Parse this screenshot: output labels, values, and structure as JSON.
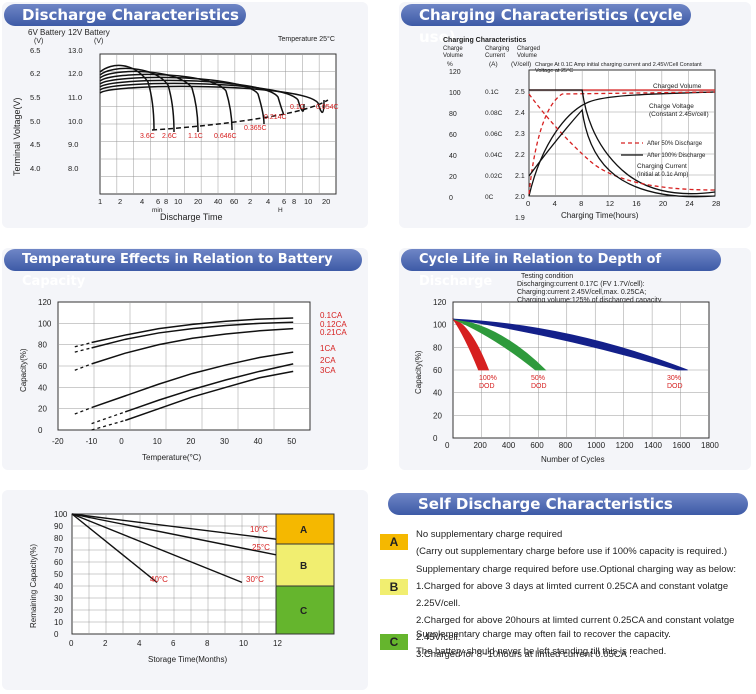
{
  "colors": {
    "header_from": "#6f86c6",
    "header_to": "#3d5aa6",
    "red": "#d62020",
    "green": "#2e9a3c",
    "navy": "#14208a",
    "zone_a": "#f5b800",
    "zone_b": "#f1ee70",
    "zone_c": "#65b52d"
  },
  "chart_data": [
    {
      "id": "discharge",
      "type": "line",
      "title": "Discharge Characteristics",
      "left_labels": {
        "v6": "6V Battery",
        "v6_unit": "(V)",
        "v12": "12V Battery",
        "v12_unit": "(V)"
      },
      "temperature": "Temperature 25°C",
      "ylabel": "Terminal Voltage(V)",
      "xlabel": "Discharge Time",
      "y6_ticks": [
        "6.5",
        "6.2",
        "5.5",
        "5.0",
        "4.5",
        "4.0"
      ],
      "y12_ticks": [
        "13.0",
        "12.0",
        "11.0",
        "10.0",
        "9.0",
        "8.0"
      ],
      "x_ticks": [
        "1",
        "2",
        "4",
        "6",
        "8",
        "10",
        "20",
        "40",
        "60",
        "2",
        "4",
        "6",
        "8",
        "10",
        "20"
      ],
      "x_units": {
        "min": "min",
        "h": "H"
      },
      "series_labels": [
        "3.6C",
        "2.6C",
        "1.1C",
        "0.646C",
        "0.365C",
        "0.214C",
        "0.1C",
        "0.054C"
      ]
    },
    {
      "id": "charging",
      "type": "line",
      "title": "Charging Characteristics (cycle use)",
      "inner_title": "Charging Characteristics",
      "col_heads": [
        [
          "Charge",
          "Volume"
        ],
        [
          "Charging",
          "Current"
        ],
        [
          "Charged",
          "Volume"
        ]
      ],
      "col_units": [
        "%",
        "(A)",
        "(V/cell)"
      ],
      "note": [
        "Charge At 0.1C Amp initial charging current  and 2.45V/Cell Constant",
        "Voltage  at 25°C"
      ],
      "vol_ticks": [
        "120",
        "100",
        "80",
        "60",
        "40",
        "20",
        "0"
      ],
      "cur_ticks": [
        "0.1C",
        "0.08C",
        "0.06C",
        "0.04C",
        "0.02C",
        "0C"
      ],
      "v_ticks": [
        "2.5",
        "2.4",
        "2.3",
        "2.2",
        "2.1",
        "2.0",
        "1.9"
      ],
      "x_ticks": [
        "0",
        "4",
        "8",
        "12",
        "16",
        "20",
        "24",
        "28"
      ],
      "xlabel": "Charging Time(hours)",
      "xlim": [
        0,
        28
      ],
      "annotations": {
        "charged_volume": "Charged Volume",
        "charge_voltage": [
          "Charge Voltage",
          "(Constant 2.45v/cell)"
        ],
        "charging_current": [
          "Charging Current",
          "(Initial at 0.1c Amp)"
        ]
      },
      "legend": [
        "After 50% Discharge",
        "After 100% Discharge"
      ]
    },
    {
      "id": "temperature",
      "type": "line",
      "title": "Temperature Effects in Relation to Battery Capacity",
      "xlabel": "Temperature(°C)",
      "ylabel": "Capacity(%)",
      "xlim": [
        -20,
        55
      ],
      "ylim": [
        0,
        120
      ],
      "x_ticks": [
        "-20",
        "-10",
        "0",
        "10",
        "20",
        "30",
        "40",
        "50"
      ],
      "y_ticks": [
        "0",
        "20",
        "40",
        "60",
        "80",
        "100",
        "120"
      ],
      "series": [
        {
          "name": "0.1CA",
          "x": [
            -15,
            -10,
            0,
            10,
            20,
            30,
            40,
            50
          ],
          "values": [
            78,
            82,
            89,
            95,
            99,
            102,
            104,
            105
          ]
        },
        {
          "name": "0.12CA",
          "x": [
            -15,
            -10,
            0,
            10,
            20,
            30,
            40,
            50
          ],
          "values": [
            73,
            77,
            85,
            91,
            95,
            98,
            100,
            101
          ]
        },
        {
          "name": "0.21CA",
          "x": [
            -15,
            -10,
            0,
            10,
            20,
            30,
            40,
            50
          ],
          "values": [
            56,
            62,
            72,
            80,
            86,
            90,
            93,
            95
          ]
        },
        {
          "name": "1CA",
          "x": [
            -15,
            -10,
            0,
            10,
            20,
            30,
            40,
            50
          ],
          "values": [
            15,
            21,
            32,
            43,
            53,
            61,
            68,
            73
          ]
        },
        {
          "name": "2CA",
          "x": [
            -10,
            0,
            10,
            20,
            30,
            40,
            50
          ],
          "values": [
            6,
            17,
            28,
            38,
            47,
            55,
            62
          ]
        },
        {
          "name": "3CA",
          "x": [
            -10,
            0,
            10,
            20,
            30,
            40,
            50
          ],
          "values": [
            0,
            9,
            20,
            31,
            40,
            49,
            55
          ]
        }
      ]
    },
    {
      "id": "cycle",
      "type": "area",
      "title": "Cycle Life in Relation to Depth of Discharge",
      "condition": [
        "Testing condition",
        "Discharging:current 0.17C (FV 1.7V/cell):",
        "Charging:current 2.45V/cell,max. 0.25CA;",
        "Charging volume:125% of discharged capacity."
      ],
      "xlabel": "Number of Cycles",
      "ylabel": "Capacity(%)",
      "xlim": [
        0,
        1800
      ],
      "ylim": [
        0,
        120
      ],
      "x_ticks": [
        "0",
        "200",
        "400",
        "600",
        "800",
        "1000",
        "1200",
        "1400",
        "1600",
        "1800"
      ],
      "y_ticks": [
        "0",
        "20",
        "40",
        "60",
        "80",
        "100",
        "120"
      ],
      "series": [
        {
          "name": "100% DOD",
          "end": 250
        },
        {
          "name": "50% DOD",
          "end": 650
        },
        {
          "name": "30% DOD",
          "end": 1650
        }
      ]
    },
    {
      "id": "self_discharge",
      "type": "line",
      "xlabel": "Storage Time(Months)",
      "ylabel": "Remaining Capacity(%)",
      "xlim": [
        0,
        12
      ],
      "ylim": [
        0,
        100
      ],
      "x_ticks": [
        "0",
        "2",
        "4",
        "6",
        "8",
        "10",
        "12"
      ],
      "y_ticks": [
        "0",
        "10",
        "20",
        "30",
        "40",
        "50",
        "60",
        "70",
        "80",
        "90",
        "100"
      ],
      "zones": [
        "A",
        "B",
        "C"
      ],
      "series": [
        {
          "name": "10°C",
          "x": [
            0,
            12
          ],
          "values": [
            100,
            79
          ]
        },
        {
          "name": "25°C",
          "x": [
            0,
            12
          ],
          "values": [
            100,
            66
          ]
        },
        {
          "name": "30°C",
          "x": [
            0,
            10
          ],
          "values": [
            100,
            43
          ]
        },
        {
          "name": "40°C",
          "x": [
            0,
            5
          ],
          "values": [
            100,
            43
          ]
        }
      ]
    }
  ],
  "self_discharge": {
    "title": "Self Discharge Characteristics",
    "a_lines": [
      "No supplementary charge required",
      "(Carry out supplementary charge before use if 100% capacity is required.)"
    ],
    "b_lines": [
      "Supplementary charge required before use.Optional charging way as below:",
      "1.Charged for above 3 days at limted current 0.25CA and constant volatge 2.25V/cell.",
      "2.Charged for above 20hours at limted current 0.25CA and constant volatge 2.45V/cell.",
      "3.Charged for 8~10hours at limted current 0.05CA ."
    ],
    "c_lines": [
      "Supplementary charge may often fail to recover the capacity.",
      "The battery should never be  left standing till this is reached."
    ]
  }
}
